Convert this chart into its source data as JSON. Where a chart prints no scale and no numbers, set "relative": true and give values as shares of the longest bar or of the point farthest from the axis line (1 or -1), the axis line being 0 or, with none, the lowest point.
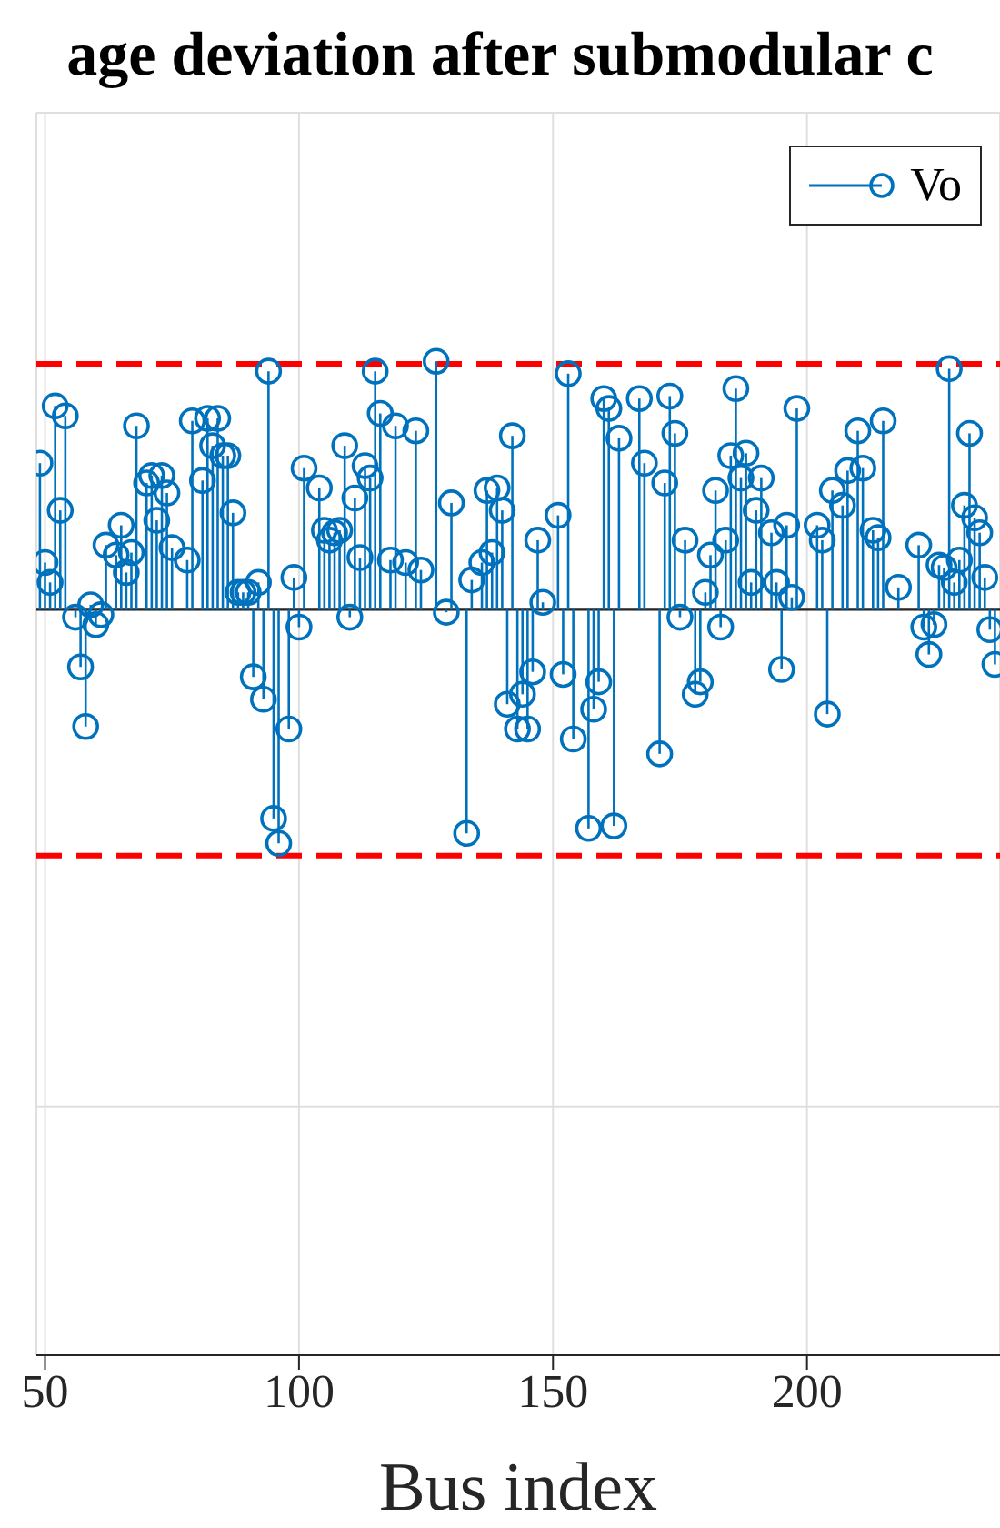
{
  "chart_data": {
    "type": "lollipop",
    "title": "age deviation after submodular c",
    "xlabel": "Bus index",
    "relative": true,
    "marker": "circle",
    "grid": true,
    "legend": "top right",
    "xlim": [
      48.3,
      238
    ],
    "xticks": [
      50,
      100,
      150,
      200
    ],
    "x": [
      49,
      50,
      51,
      52,
      53,
      54,
      56,
      57,
      58,
      59,
      60,
      61,
      62,
      64,
      65,
      66,
      67,
      68,
      70,
      71,
      72,
      73,
      74,
      75,
      78,
      79,
      81,
      82,
      83,
      84,
      85,
      86,
      87,
      88,
      89,
      90,
      91,
      92,
      93,
      94,
      95,
      96,
      98,
      99,
      100,
      101,
      104,
      105,
      106,
      107,
      108,
      109,
      110,
      111,
      112,
      113,
      114,
      115,
      116,
      118,
      119,
      121,
      123,
      124,
      127,
      129,
      130,
      133,
      134,
      136,
      137,
      138,
      139,
      140,
      141,
      142,
      143,
      144,
      145,
      146,
      147,
      148,
      151,
      152,
      153,
      154,
      157,
      158,
      159,
      160,
      161,
      162,
      163,
      167,
      168,
      171,
      172,
      173,
      174,
      175,
      176,
      178,
      179,
      180,
      181,
      182,
      183,
      184,
      185,
      186,
      187,
      188,
      189,
      190,
      191,
      193,
      194,
      195,
      196,
      197,
      198,
      202,
      203,
      204,
      205,
      207,
      208,
      210,
      211,
      213,
      214,
      215,
      218,
      222,
      223,
      224,
      225,
      226,
      227,
      228,
      229,
      230,
      231,
      232,
      233,
      234,
      235,
      236,
      237
    ],
    "series": [
      {
        "name": "Vo",
        "color": "#0072bd",
        "values": [
          0.59,
          0.19,
          0.11,
          0.82,
          0.4,
          0.78,
          -0.03,
          -0.23,
          -0.47,
          0.02,
          -0.06,
          -0.02,
          0.26,
          0.22,
          0.34,
          0.15,
          0.23,
          0.74,
          0.51,
          0.54,
          0.36,
          0.54,
          0.47,
          0.25,
          0.2,
          0.76,
          0.52,
          0.77,
          0.66,
          0.77,
          0.62,
          0.62,
          0.39,
          0.07,
          0.07,
          0.07,
          -0.27,
          0.11,
          -0.36,
          0.96,
          -0.84,
          -0.94,
          -0.48,
          0.13,
          -0.07,
          0.57,
          0.49,
          0.32,
          0.28,
          0.31,
          0.32,
          0.66,
          -0.03,
          0.45,
          0.21,
          0.58,
          0.53,
          0.96,
          0.79,
          0.2,
          0.74,
          0.19,
          0.72,
          0.16,
          1.0,
          -0.01,
          0.43,
          -0.9,
          0.12,
          0.19,
          0.48,
          0.23,
          0.49,
          0.4,
          -0.38,
          0.7,
          -0.48,
          -0.34,
          -0.48,
          -0.25,
          0.28,
          0.03,
          0.38,
          -0.26,
          0.95,
          -0.52,
          -0.88,
          -0.4,
          -0.29,
          0.85,
          0.81,
          -0.87,
          0.69,
          0.85,
          0.59,
          -0.58,
          0.51,
          0.86,
          0.71,
          -0.03,
          0.28,
          -0.34,
          -0.29,
          0.07,
          0.22,
          0.48,
          -0.07,
          0.28,
          0.62,
          0.89,
          0.53,
          0.63,
          0.11,
          0.4,
          0.53,
          0.31,
          0.11,
          -0.24,
          0.34,
          0.05,
          0.81,
          0.34,
          0.28,
          -0.42,
          0.48,
          0.42,
          0.56,
          0.72,
          0.57,
          0.32,
          0.29,
          0.76,
          0.09,
          0.26,
          -0.07,
          -0.18,
          -0.06,
          0.18,
          0.17,
          0.97,
          0.11,
          0.2,
          0.42,
          0.71,
          0.37,
          0.31,
          0.13,
          -0.08,
          -0.22
        ]
      }
    ],
    "ref_lines": [
      {
        "axis": "y",
        "value": 0.99,
        "color": "#ff0000",
        "line_style": "dashed"
      },
      {
        "axis": "y",
        "value": -0.99,
        "color": "#ff0000",
        "line_style": "dashed"
      }
    ]
  }
}
